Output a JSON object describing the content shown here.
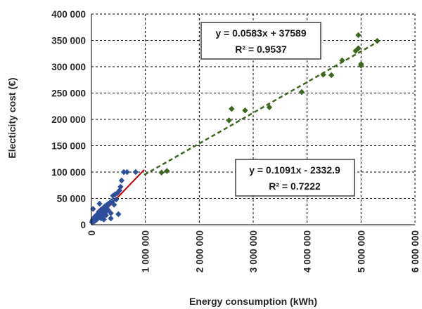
{
  "chart_data": {
    "type": "scatter",
    "title": "",
    "xlabel": "Energy consumption (kWh)",
    "ylabel": "Electicity cost (€)",
    "xlim": [
      0,
      6000000
    ],
    "ylim": [
      0,
      400000
    ],
    "x_ticks": [
      0,
      1000000,
      2000000,
      3000000,
      4000000,
      5000000,
      6000000
    ],
    "x_tick_labels": [
      "0",
      "1 000 000",
      "2 000 000",
      "3 000 000",
      "4 000 000",
      "5 000 000",
      "6 000 000"
    ],
    "y_ticks": [
      0,
      50000,
      100000,
      150000,
      200000,
      250000,
      300000,
      350000,
      400000
    ],
    "y_tick_labels": [
      "0",
      "50 000",
      "100 000",
      "150 000",
      "200 000",
      "250 000",
      "300 000",
      "350 000",
      "400 000"
    ],
    "grid": true,
    "legend": "none",
    "series": [
      {
        "color": "#2e4f9a",
        "marker": "diamond",
        "x": [
          10000,
          20000,
          30000,
          40000,
          50000,
          60000,
          70000,
          80000,
          90000,
          100000,
          110000,
          120000,
          130000,
          140000,
          150000,
          160000,
          170000,
          180000,
          190000,
          200000,
          210000,
          220000,
          230000,
          240000,
          250000,
          260000,
          270000,
          280000,
          290000,
          300000,
          320000,
          340000,
          360000,
          380000,
          400000,
          420000,
          440000,
          460000,
          480000,
          500000,
          520000,
          540000,
          560000,
          600000,
          660000,
          820000,
          30000,
          60000,
          150000,
          230000,
          270000,
          360000,
          180000,
          200000,
          250000,
          310000,
          120000,
          160000,
          90000,
          210000
        ],
        "y": [
          5000,
          8000,
          10000,
          12000,
          6000,
          14000,
          10000,
          16000,
          18000,
          15000,
          20000,
          17000,
          22000,
          25000,
          20000,
          24000,
          28000,
          19000,
          27000,
          30000,
          23000,
          32000,
          29000,
          26000,
          35000,
          31000,
          25000,
          33000,
          38000,
          36000,
          40000,
          42000,
          12000,
          45000,
          55000,
          38000,
          58000,
          48000,
          60000,
          20000,
          65000,
          72000,
          84000,
          100000,
          100000,
          100000,
          30000,
          15000,
          40000,
          10000,
          18000,
          22000,
          12000,
          26000,
          20000,
          28000,
          12000,
          14000,
          9000,
          16000
        ]
      },
      {
        "color": "#3f6620",
        "marker": "diamond",
        "x": [
          1300000,
          1400000,
          2550000,
          2600000,
          2850000,
          3300000,
          3900000,
          4300000,
          4450000,
          4650000,
          4900000,
          4950000,
          4950000,
          5000000,
          5000000,
          5300000
        ],
        "y": [
          99000,
          102000,
          198000,
          220000,
          217000,
          223000,
          252000,
          285000,
          284000,
          312000,
          330000,
          335000,
          360000,
          302000,
          305000,
          349000
        ]
      }
    ],
    "trendlines": [
      {
        "equation": "y = 0.1091x - 2332.9",
        "r2": "R² = 0.7222",
        "slope": 0.1091,
        "intercept": -2332.9,
        "x_range": [
          0,
          980000
        ],
        "color": "#c00000",
        "style": "solid"
      },
      {
        "equation": "y = 0.0583x + 37589",
        "r2": "R² = 0.9537",
        "slope": 0.0583,
        "intercept": 37589,
        "x_range": [
          980000,
          5300000
        ],
        "color": "#3f6620",
        "style": "dashed"
      }
    ]
  }
}
